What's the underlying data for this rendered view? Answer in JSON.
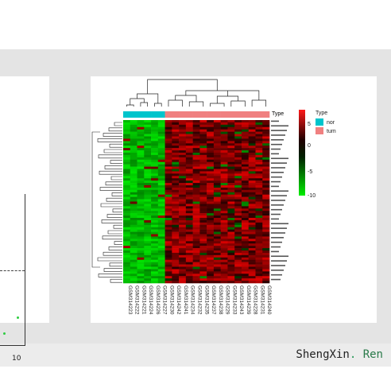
{
  "left_panel": {
    "x_tick_label": "10"
  },
  "heatmap": {
    "annotation_title": "Type",
    "legend": {
      "title": "Type",
      "items": [
        {
          "label": "nor",
          "color": "#00c4cc"
        },
        {
          "label": "tum",
          "color": "#f08080"
        }
      ],
      "colorbar_ticks": [
        "5",
        "0",
        "-5",
        "-10"
      ]
    },
    "samples": [
      "GSM314223",
      "GSM314222",
      "GSM314221",
      "GSM314224",
      "GSM314226",
      "GSM314227",
      "GSM314230",
      "GSM314242",
      "GSM314241",
      "GSM314234",
      "GSM314232",
      "GSM314235",
      "GSM314237",
      "GSM314238",
      "GSM314229",
      "GSM314233",
      "GSM314243",
      "GSM314239",
      "GSM314228",
      "GSM314231",
      "GSM314240"
    ],
    "normal_count": 6
  },
  "footer": {
    "brand_main": "ShengXin",
    "brand_sep": ".",
    "brand_tail": "Ren"
  }
}
